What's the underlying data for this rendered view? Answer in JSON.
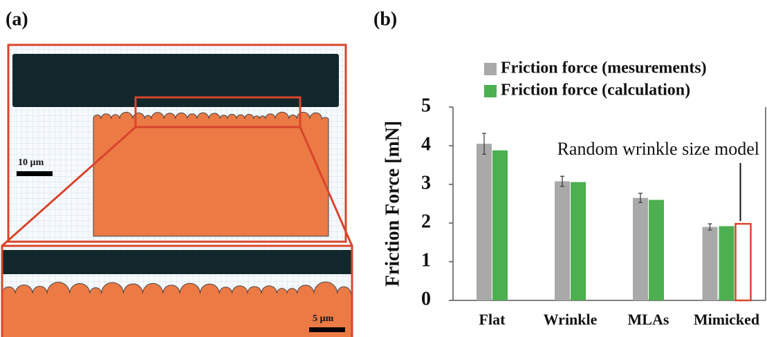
{
  "panels": {
    "a": {
      "label": "(a)",
      "scale_bars": [
        "10 µm",
        "5 µm"
      ]
    },
    "b": {
      "label": "(b)"
    }
  },
  "chart_data": {
    "type": "bar",
    "ylabel": "Friction Force [mN]",
    "categories": [
      "Flat",
      "Wrinkle",
      "MLAs",
      "Mimicked"
    ],
    "series": [
      {
        "name": "Friction force (mesurements)",
        "color": "#a9a9a9",
        "values": [
          4.05,
          3.08,
          2.65,
          1.9
        ],
        "errors": [
          0.27,
          0.13,
          0.12,
          0.08
        ]
      },
      {
        "name": "Friction force (calculation)",
        "color": "#4caf50",
        "values": [
          3.88,
          3.06,
          2.6,
          1.92
        ]
      }
    ],
    "annotation": {
      "text": "Random wrinkle size model",
      "value": 1.98,
      "color": "#d9442b"
    },
    "ylim": [
      0,
      5
    ],
    "yticks": [
      0,
      1,
      2,
      3,
      4,
      5
    ],
    "grid": false
  }
}
